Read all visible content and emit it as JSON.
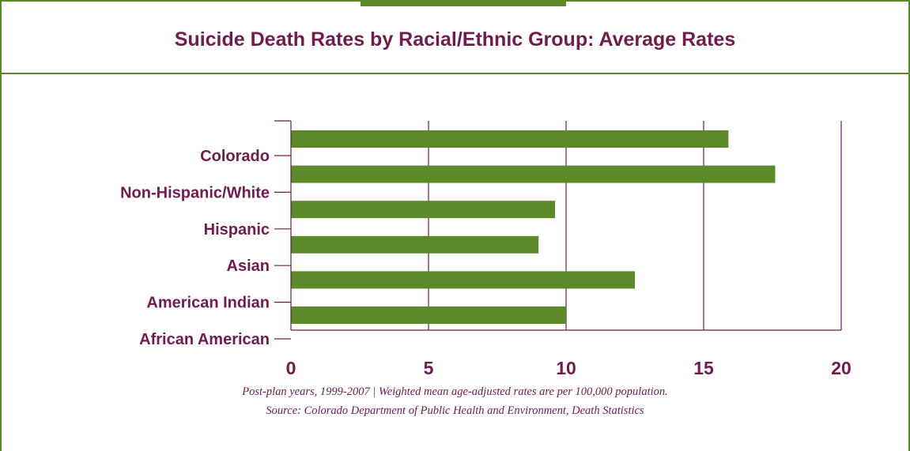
{
  "title": "Suicide Death Rates by Racial/Ethnic Group: Average Rates",
  "footnote_line1": "Post-plan years, 1999-2007  |  Weighted mean age-adjusted rates are per 100,000 population.",
  "footnote_line2": "Source: Colorado Department of Public Health and Environment, Death Statistics",
  "colors": {
    "bar": "#5d8a28",
    "text": "#6e1d4e",
    "frame": "#5d8a28"
  },
  "chart_data": {
    "type": "bar",
    "orientation": "horizontal",
    "title": "Suicide Death Rates by Racial/Ethnic Group: Average Rates",
    "categories": [
      "Colorado",
      "Non-Hispanic/White",
      "Hispanic",
      "Asian",
      "American Indian",
      "African American"
    ],
    "values": [
      15.9,
      17.6,
      9.6,
      9.0,
      12.5,
      10.0
    ],
    "xlim": [
      0,
      20
    ],
    "xticks": [
      0,
      5,
      10,
      15,
      20
    ],
    "xlabel": "",
    "ylabel": "",
    "grid": "vertical"
  }
}
